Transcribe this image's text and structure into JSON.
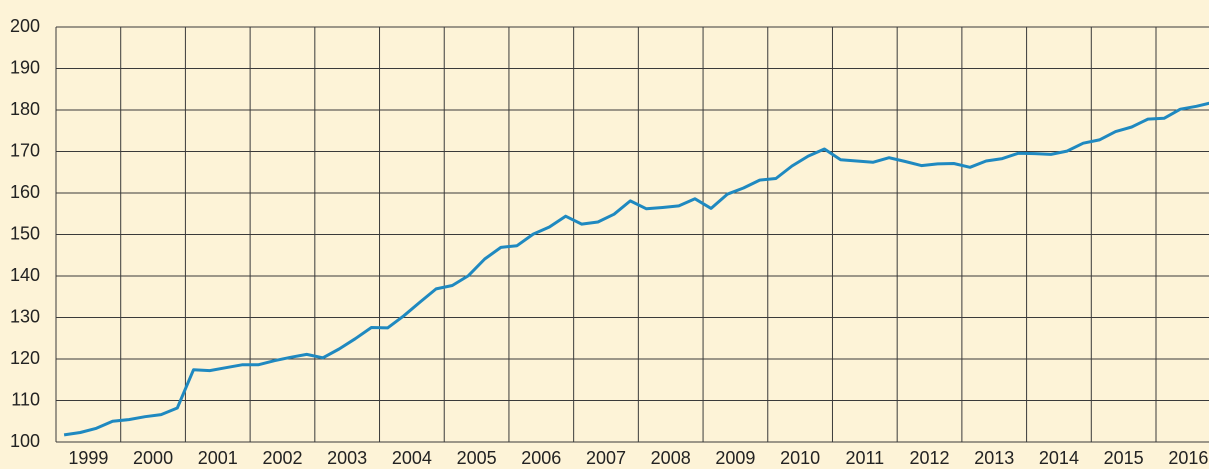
{
  "chart_data": {
    "type": "line",
    "categories": [
      "1999",
      "2000",
      "2001",
      "2002",
      "2003",
      "2004",
      "2005",
      "2006",
      "2007",
      "2008",
      "2009",
      "2010",
      "2011",
      "2012",
      "2013",
      "2014",
      "2015",
      "2016"
    ],
    "x": [
      1999.125,
      1999.375,
      1999.625,
      1999.875,
      2000.125,
      2000.375,
      2000.625,
      2000.875,
      2001.125,
      2001.375,
      2001.625,
      2001.875,
      2002.125,
      2002.375,
      2002.625,
      2002.875,
      2003.125,
      2003.375,
      2003.625,
      2003.875,
      2004.125,
      2004.375,
      2004.625,
      2004.875,
      2005.125,
      2005.375,
      2005.625,
      2005.875,
      2006.125,
      2006.375,
      2006.625,
      2006.875,
      2007.125,
      2007.375,
      2007.625,
      2007.875,
      2008.125,
      2008.375,
      2008.625,
      2008.875,
      2009.125,
      2009.375,
      2009.625,
      2009.875,
      2010.125,
      2010.375,
      2010.625,
      2010.875,
      2011.125,
      2011.375,
      2011.625,
      2011.875,
      2012.125,
      2012.375,
      2012.625,
      2012.875,
      2013.125,
      2013.375,
      2013.625,
      2013.875,
      2014.125,
      2014.375,
      2014.625,
      2014.875,
      2015.125,
      2015.375,
      2015.625,
      2015.875,
      2016.125,
      2016.375,
      2016.625,
      2016.875
    ],
    "values": [
      101.7,
      102.3,
      103.3,
      105,
      105.4,
      106.1,
      106.6,
      108.2,
      117.4,
      117.2,
      117.9,
      118.6,
      118.6,
      119.6,
      120.4,
      121.1,
      120.3,
      122.4,
      124.9,
      127.6,
      127.5,
      130.4,
      133.7,
      136.9,
      137.7,
      140.1,
      144.1,
      146.9,
      147.3,
      150.1,
      151.8,
      154.4,
      152.5,
      153,
      154.9,
      158.1,
      156.2,
      156.5,
      156.9,
      158.6,
      156.3,
      159.7,
      161.2,
      163.1,
      163.5,
      166.5,
      168.9,
      170.6,
      168,
      167.7,
      167.4,
      168.5,
      167.6,
      166.6,
      167,
      167.1,
      166.2,
      167.7,
      168.3,
      169.6,
      169.5,
      169.3,
      170.1,
      172,
      172.8,
      174.8,
      175.9,
      177.8,
      178,
      180.2,
      180.9,
      181.8
    ],
    "color": "#1f89c0",
    "xlim": [
      1999,
      2017
    ],
    "ylim": [
      100,
      200
    ],
    "yticks": [
      100,
      110,
      120,
      130,
      140,
      150,
      160,
      170,
      180,
      190,
      200
    ],
    "grid": true
  }
}
